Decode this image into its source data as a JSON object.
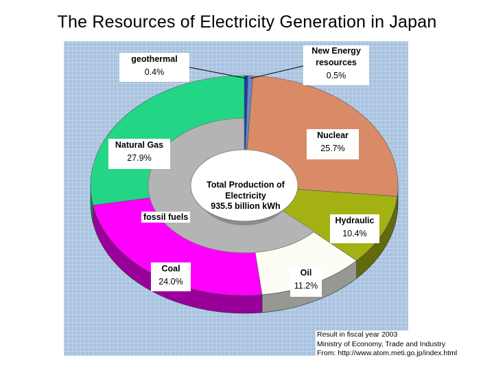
{
  "title": "The Resources of Electricity Generation in Japan",
  "chart_data": {
    "type": "pie",
    "variant": "3d-donut",
    "center_text": [
      "Total Production of",
      "Electricity",
      "935.5 billion kWh"
    ],
    "group_label": "fossil fuels",
    "slices": [
      {
        "name": "geothermal",
        "value": 0.4,
        "display": "0.4%",
        "color": "#1a3fa0"
      },
      {
        "name": "New Energy resources",
        "value": 0.5,
        "display": "0.5%",
        "color": "#6688cc"
      },
      {
        "name": "Nuclear",
        "value": 25.7,
        "display": "25.7%",
        "color": "#d98b68"
      },
      {
        "name": "Hydraulic",
        "value": 10.4,
        "display": "10.4%",
        "color": "#a3b212"
      },
      {
        "name": "Oil",
        "value": 11.2,
        "display": "11.2%",
        "color": "#fdfdf5"
      },
      {
        "name": "Coal",
        "value": 24.0,
        "display": "24.0%",
        "color": "#ff00ff"
      },
      {
        "name": "Natural Gas",
        "value": 27.9,
        "display": "27.9%",
        "color": "#23d685"
      }
    ],
    "source_note": [
      "Result in fiscal year 2003",
      "Ministry of Economy, Trade and Industry",
      "From: http://www.atom.meti.go.jp/index.html"
    ]
  }
}
